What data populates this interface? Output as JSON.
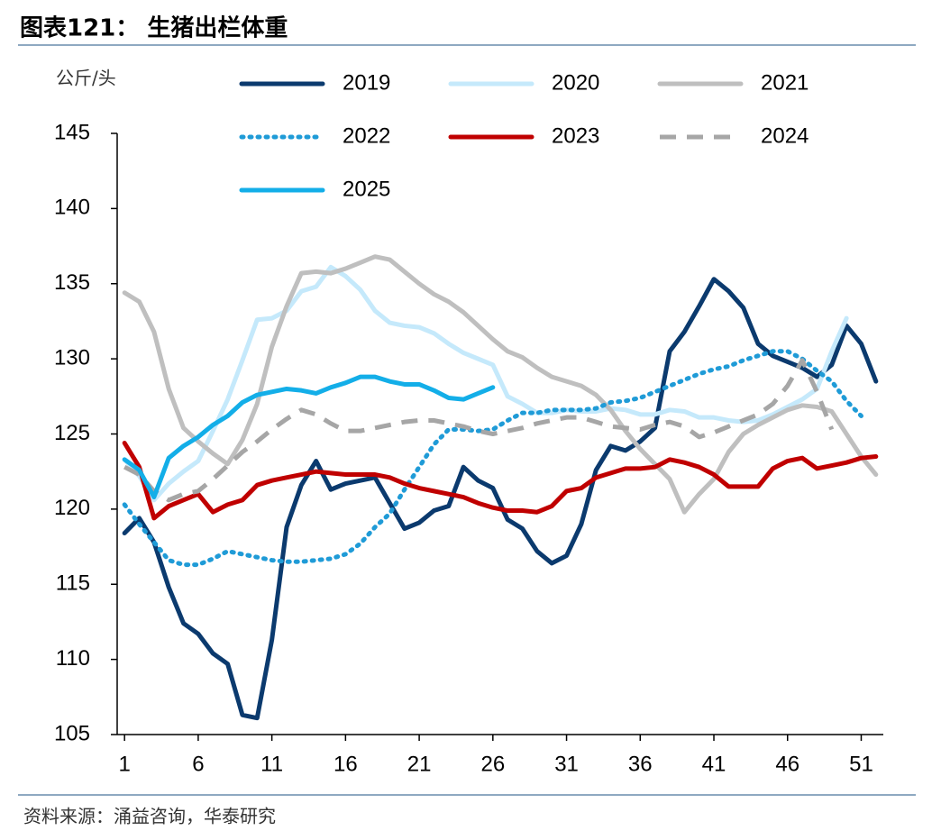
{
  "chart_data": {
    "type": "line",
    "title": "图表121： 生猪出栏体重",
    "y_label": "公斤/头",
    "source": "资料来源：涌益咨询，华泰研究",
    "x": [
      1,
      2,
      3,
      4,
      5,
      6,
      7,
      8,
      9,
      10,
      11,
      12,
      13,
      14,
      15,
      16,
      17,
      18,
      19,
      20,
      21,
      22,
      23,
      24,
      25,
      26,
      27,
      28,
      29,
      30,
      31,
      32,
      33,
      34,
      35,
      36,
      37,
      38,
      39,
      40,
      41,
      42,
      43,
      44,
      45,
      46,
      47,
      48,
      49,
      50,
      51,
      52
    ],
    "xlim": [
      0.5,
      52.5
    ],
    "xticks": [
      1,
      6,
      11,
      16,
      21,
      26,
      31,
      36,
      41,
      46,
      51
    ],
    "ylim": [
      105,
      145
    ],
    "yticks": [
      105,
      110,
      115,
      120,
      125,
      130,
      135,
      140,
      145
    ],
    "grid": false,
    "series": [
      {
        "name": "2019",
        "color": "#0b3a6e",
        "style": "solid",
        "values": [
          118.4,
          119.4,
          117.8,
          114.8,
          112.4,
          111.7,
          110.4,
          109.7,
          106.3,
          106.1,
          111.3,
          118.8,
          121.6,
          123.2,
          121.3,
          121.7,
          121.9,
          122.1,
          120.4,
          118.7,
          119.1,
          119.9,
          120.2,
          122.8,
          121.9,
          121.4,
          119.3,
          118.7,
          117.2,
          116.4,
          116.9,
          119.0,
          122.6,
          124.2,
          123.9,
          124.5,
          125.4,
          130.5,
          131.8,
          133.5,
          135.3,
          134.5,
          133.4,
          131.0,
          130.2,
          129.8,
          129.4,
          128.8,
          129.6,
          132.2,
          131.0,
          128.5
        ]
      },
      {
        "name": "2020",
        "color": "#c5e9fb",
        "style": "solid",
        "values": [
          123.3,
          122.2,
          120.6,
          121.7,
          122.5,
          123.2,
          125.2,
          127.3,
          129.9,
          132.6,
          132.7,
          133.2,
          134.5,
          134.8,
          136.1,
          135.5,
          134.6,
          133.2,
          132.4,
          132.2,
          132.1,
          131.7,
          131.0,
          130.4,
          130.0,
          129.6,
          127.5,
          127.0,
          126.4,
          126.4,
          126.6,
          126.5,
          126.5,
          126.7,
          126.6,
          126.3,
          126.3,
          126.6,
          126.5,
          126.1,
          126.1,
          125.9,
          125.8,
          125.9,
          126.3,
          126.8,
          127.3,
          128.0,
          130.5,
          132.7,
          null,
          null
        ]
      },
      {
        "name": "2021",
        "color": "#bfbfbf",
        "style": "solid",
        "values": [
          134.4,
          133.8,
          131.8,
          128.0,
          125.4,
          124.5,
          123.7,
          123.0,
          124.6,
          127.0,
          130.8,
          133.5,
          135.7,
          135.8,
          135.7,
          136.0,
          136.4,
          136.8,
          136.6,
          135.8,
          135.0,
          134.3,
          133.8,
          133.1,
          132.2,
          131.3,
          130.5,
          130.1,
          129.4,
          128.8,
          128.5,
          128.2,
          127.6,
          126.6,
          125.2,
          124.0,
          123.0,
          122.0,
          119.8,
          121.0,
          122.0,
          123.8,
          125.0,
          125.6,
          126.1,
          126.6,
          126.9,
          126.8,
          126.5,
          125.0,
          123.5,
          122.3
        ]
      },
      {
        "name": "2022",
        "color": "#1f9bd7",
        "style": "dotted",
        "values": [
          120.3,
          119.0,
          117.8,
          116.6,
          116.3,
          116.3,
          116.7,
          117.2,
          117.0,
          116.8,
          116.6,
          116.5,
          116.5,
          116.6,
          116.7,
          117.0,
          117.7,
          118.8,
          119.7,
          121.3,
          122.8,
          124.3,
          125.3,
          125.3,
          125.2,
          125.3,
          125.9,
          126.4,
          126.4,
          126.6,
          126.6,
          126.6,
          126.7,
          127.1,
          127.2,
          127.4,
          127.8,
          128.2,
          128.6,
          129.0,
          129.3,
          129.5,
          129.9,
          130.2,
          130.5,
          130.5,
          130.0,
          129.2,
          128.5,
          127.2,
          126.2,
          null
        ]
      },
      {
        "name": "2023",
        "color": "#c00000",
        "style": "solid",
        "values": [
          124.4,
          122.8,
          119.4,
          120.2,
          120.6,
          121.0,
          119.8,
          120.3,
          120.6,
          121.6,
          121.9,
          122.1,
          122.3,
          122.5,
          122.4,
          122.3,
          122.3,
          122.3,
          122.1,
          121.7,
          121.4,
          121.2,
          121.0,
          120.8,
          120.4,
          120.1,
          119.9,
          119.9,
          119.8,
          120.2,
          121.2,
          121.4,
          122.1,
          122.4,
          122.7,
          122.7,
          122.8,
          123.3,
          123.1,
          122.8,
          122.3,
          121.5,
          121.5,
          121.5,
          122.7,
          123.2,
          123.4,
          122.7,
          122.9,
          123.1,
          123.4,
          123.5
        ]
      },
      {
        "name": "2024",
        "color": "#a6a6a6",
        "style": "dashed",
        "values": [
          122.8,
          122.3,
          121.2,
          120.6,
          121.0,
          121.2,
          122.0,
          122.9,
          123.8,
          124.5,
          125.3,
          126.0,
          126.6,
          126.3,
          125.7,
          125.2,
          125.2,
          125.4,
          125.6,
          125.8,
          125.9,
          125.9,
          125.7,
          125.5,
          125.2,
          125.0,
          125.2,
          125.4,
          125.7,
          125.9,
          126.1,
          126.1,
          125.8,
          125.5,
          125.4,
          125.3,
          125.6,
          125.8,
          125.5,
          124.8,
          125.1,
          125.5,
          125.9,
          126.3,
          127.0,
          128.2,
          129.9,
          127.8,
          125.3,
          null,
          null,
          null
        ]
      },
      {
        "name": "2025",
        "color": "#13aee8",
        "style": "solid",
        "values": [
          123.3,
          122.6,
          120.8,
          123.4,
          124.2,
          124.8,
          125.6,
          126.2,
          127.1,
          127.6,
          127.8,
          128.0,
          127.9,
          127.7,
          128.1,
          128.4,
          128.8,
          128.8,
          128.5,
          128.3,
          128.3,
          127.9,
          127.4,
          127.3,
          127.7,
          128.1,
          null,
          null,
          null,
          null,
          null,
          null,
          null,
          null,
          null,
          null,
          null,
          null,
          null,
          null,
          null,
          null,
          null,
          null,
          null,
          null,
          null,
          null,
          null,
          null,
          null,
          null
        ]
      }
    ]
  }
}
